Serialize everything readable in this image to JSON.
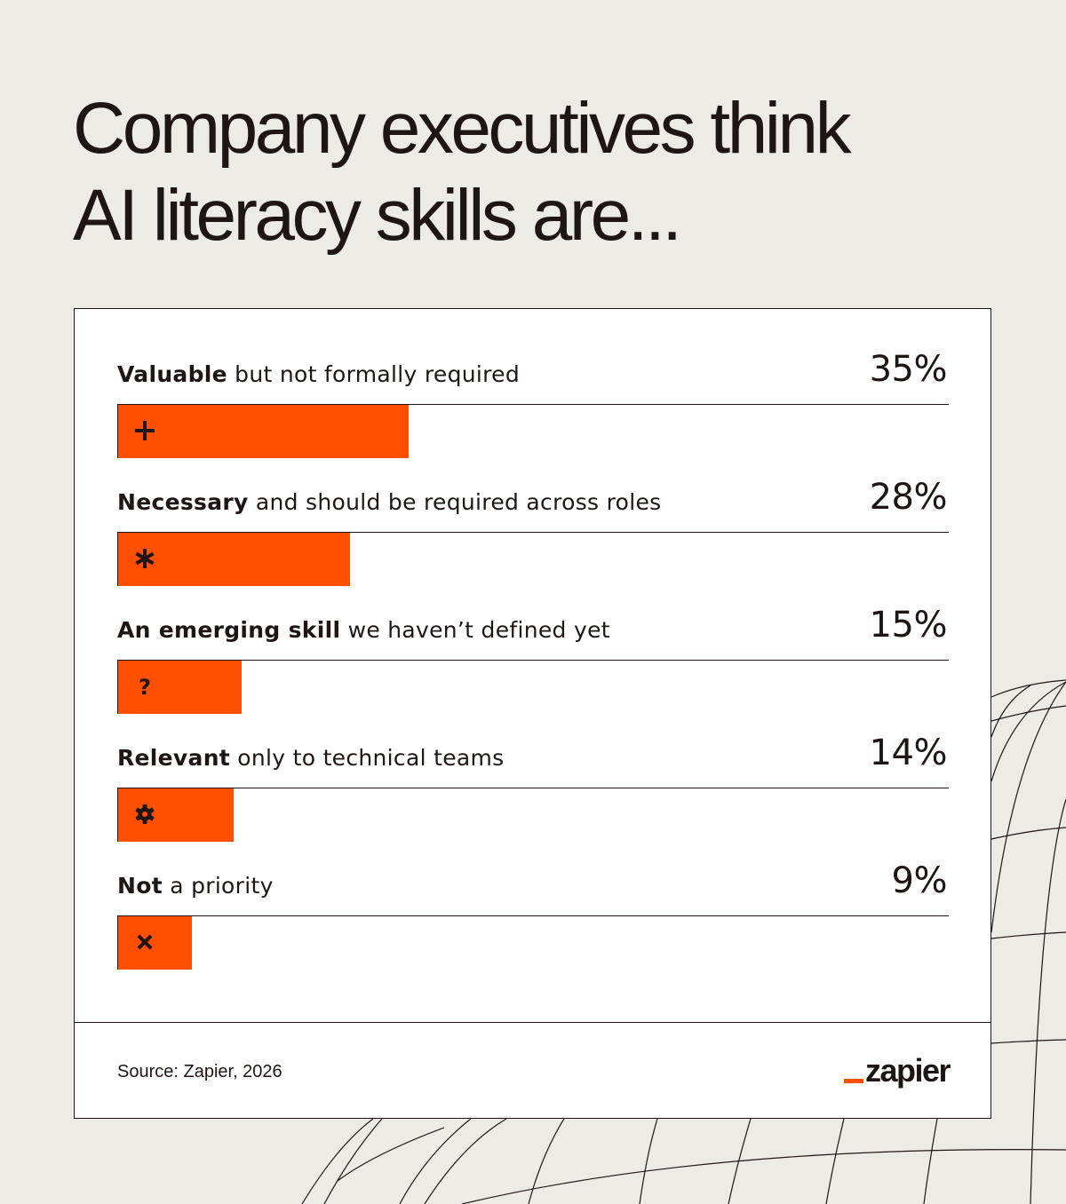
{
  "headline": {
    "line1": "Company executives think",
    "line2": "AI literacy skills are..."
  },
  "chart_data": {
    "type": "bar",
    "orientation": "horizontal",
    "unit": "%",
    "xlim": [
      0,
      100
    ],
    "grid": false,
    "categories": [
      "Valuable but not formally required",
      "Necessary and should be required across roles",
      "An emerging skill we haven’t defined yet",
      "Relevant only to technical teams",
      "Not a priority"
    ],
    "values": [
      35,
      28,
      15,
      14,
      9
    ]
  },
  "rows": [
    {
      "bold": "Valuable",
      "rest": " but not formally required",
      "value": 35,
      "value_label": "35%",
      "icon": "plus-icon"
    },
    {
      "bold": "Necessary",
      "rest": " and should be required across roles",
      "value": 28,
      "value_label": "28%",
      "icon": "asterisk-icon"
    },
    {
      "bold": "An emerging skill",
      "rest": " we haven’t defined yet",
      "value": 15,
      "value_label": "15%",
      "icon": "question-icon"
    },
    {
      "bold": "Relevant",
      "rest": " only to technical teams",
      "value": 14,
      "value_label": "14%",
      "icon": "gear-icon"
    },
    {
      "bold": "Not",
      "rest": " a priority",
      "value": 9,
      "value_label": "9%",
      "icon": "close-icon"
    }
  ],
  "footer": {
    "source": "Source: Zapier, 2026",
    "logo_text": "zapier"
  },
  "colors": {
    "accent": "#FF4F00",
    "ink": "#201515",
    "background": "#ECEBE6",
    "card": "#FFFFFF"
  }
}
